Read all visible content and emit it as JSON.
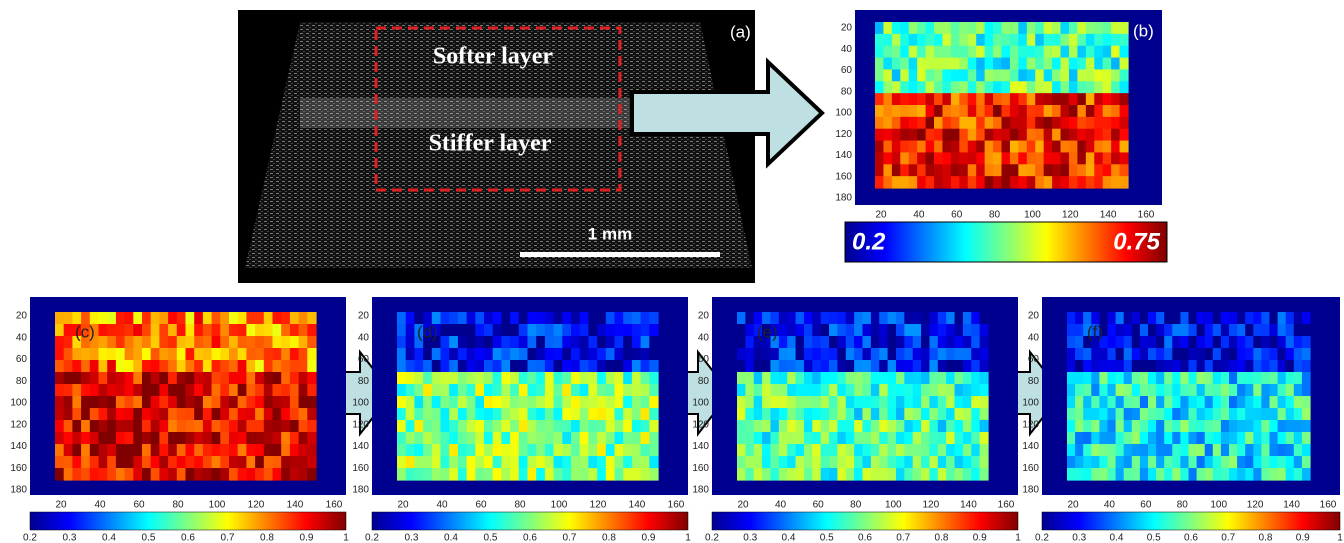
{
  "panel_a": {
    "label": "(a)",
    "softer_layer": "Softer layer",
    "stiffer_layer": "Stiffer layer",
    "scale_bar": "1 mm"
  },
  "panel_b": {
    "label": "(b)",
    "colorbar_min": 0.2,
    "colorbar_max": 0.75
  },
  "lower_panels": [
    {
      "label": "(c)"
    },
    {
      "label": "(d)"
    },
    {
      "label": "(e)"
    },
    {
      "label": "(f)"
    }
  ],
  "yticks": [
    20,
    40,
    60,
    80,
    100,
    120,
    140,
    160,
    180
  ],
  "xticks": [
    20,
    40,
    60,
    80,
    100,
    120,
    140,
    160
  ],
  "colorbar_ticks": [
    0.2,
    0.3,
    0.4,
    0.5,
    0.6,
    0.7,
    0.8,
    0.9,
    1
  ]
}
